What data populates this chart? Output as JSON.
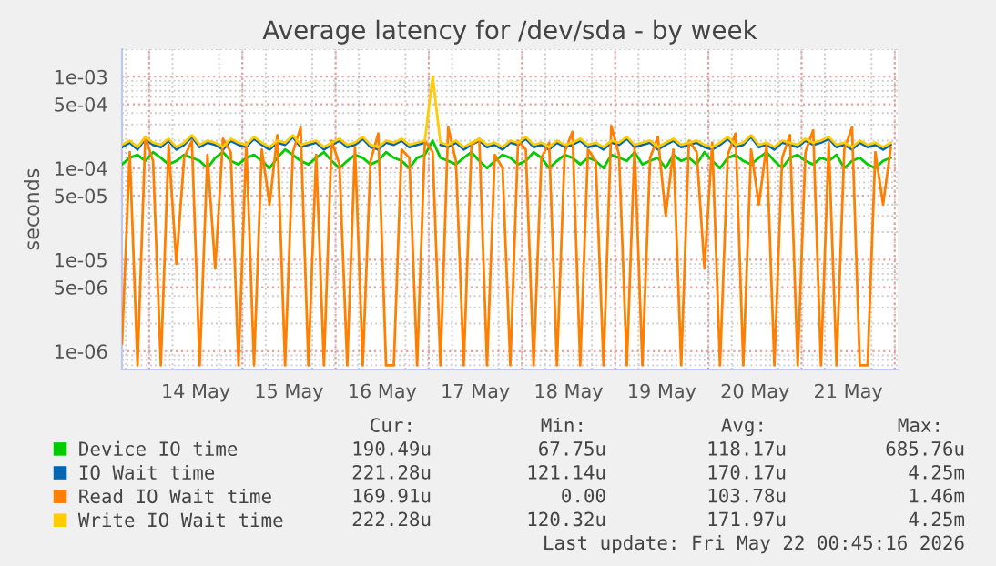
{
  "chart_data": {
    "type": "line",
    "title": "Average latency for /dev/sda - by week",
    "ylabel": "seconds",
    "log": "y",
    "grid": true,
    "legend": "bottom",
    "marker": "none",
    "line_style": "solid",
    "xlim": [
      "2026-05-13T17:00",
      "2026-05-22T00:45"
    ],
    "xticks": [
      {
        "value": "2026-05-14T12:00",
        "label": "14 May"
      },
      {
        "value": "2026-05-15T12:00",
        "label": "15 May"
      },
      {
        "value": "2026-05-16T12:00",
        "label": "16 May"
      },
      {
        "value": "2026-05-17T12:00",
        "label": "17 May"
      },
      {
        "value": "2026-05-18T12:00",
        "label": "18 May"
      },
      {
        "value": "2026-05-19T12:00",
        "label": "19 May"
      },
      {
        "value": "2026-05-20T12:00",
        "label": "20 May"
      },
      {
        "value": "2026-05-21T12:00",
        "label": "21 May"
      }
    ],
    "ylim": [
      6.3e-07,
      0.002
    ],
    "yticks": [
      {
        "value": 0.001,
        "label": "1e-03"
      },
      {
        "value": 0.0005,
        "label": "5e-04"
      },
      {
        "value": 0.0001,
        "label": "1e-04"
      },
      {
        "value": 5e-05,
        "label": "5e-05"
      },
      {
        "value": 1e-05,
        "label": "1e-05"
      },
      {
        "value": 5e-06,
        "label": "5e-06"
      },
      {
        "value": 1e-06,
        "label": "1e-06"
      }
    ],
    "x": [
      "2026-05-13T17:00",
      "2026-05-13T19:00",
      "2026-05-13T21:00",
      "2026-05-13T23:00",
      "2026-05-14T01:00",
      "2026-05-14T03:00",
      "2026-05-14T05:00",
      "2026-05-14T07:00",
      "2026-05-14T09:00",
      "2026-05-14T11:00",
      "2026-05-14T13:00",
      "2026-05-14T15:00",
      "2026-05-14T17:00",
      "2026-05-14T19:00",
      "2026-05-14T21:00",
      "2026-05-14T23:00",
      "2026-05-15T01:00",
      "2026-05-15T03:00",
      "2026-05-15T05:00",
      "2026-05-15T07:00",
      "2026-05-15T09:00",
      "2026-05-15T11:00",
      "2026-05-15T13:00",
      "2026-05-15T15:00",
      "2026-05-15T17:00",
      "2026-05-15T19:00",
      "2026-05-15T21:00",
      "2026-05-15T23:00",
      "2026-05-16T01:00",
      "2026-05-16T03:00",
      "2026-05-16T05:00",
      "2026-05-16T07:00",
      "2026-05-16T09:00",
      "2026-05-16T11:00",
      "2026-05-16T13:00",
      "2026-05-16T15:00",
      "2026-05-16T17:00",
      "2026-05-16T19:00",
      "2026-05-16T21:00",
      "2026-05-16T23:00",
      "2026-05-17T01:00",
      "2026-05-17T03:00",
      "2026-05-17T05:00",
      "2026-05-17T07:00",
      "2026-05-17T09:00",
      "2026-05-17T11:00",
      "2026-05-17T13:00",
      "2026-05-17T15:00",
      "2026-05-17T17:00",
      "2026-05-17T19:00",
      "2026-05-17T21:00",
      "2026-05-17T23:00",
      "2026-05-18T01:00",
      "2026-05-18T03:00",
      "2026-05-18T05:00",
      "2026-05-18T07:00",
      "2026-05-18T09:00",
      "2026-05-18T11:00",
      "2026-05-18T13:00",
      "2026-05-18T15:00",
      "2026-05-18T17:00",
      "2026-05-18T19:00",
      "2026-05-18T21:00",
      "2026-05-18T23:00",
      "2026-05-19T01:00",
      "2026-05-19T03:00",
      "2026-05-19T05:00",
      "2026-05-19T07:00",
      "2026-05-19T09:00",
      "2026-05-19T11:00",
      "2026-05-19T13:00",
      "2026-05-19T15:00",
      "2026-05-19T17:00",
      "2026-05-19T19:00",
      "2026-05-19T21:00",
      "2026-05-19T23:00",
      "2026-05-20T01:00",
      "2026-05-20T03:00",
      "2026-05-20T05:00",
      "2026-05-20T07:00",
      "2026-05-20T09:00",
      "2026-05-20T11:00",
      "2026-05-20T13:00",
      "2026-05-20T15:00",
      "2026-05-20T17:00",
      "2026-05-20T19:00",
      "2026-05-20T21:00",
      "2026-05-20T23:00",
      "2026-05-21T01:00",
      "2026-05-21T03:00",
      "2026-05-21T05:00",
      "2026-05-21T07:00",
      "2026-05-21T09:00",
      "2026-05-21T11:00",
      "2026-05-21T13:00",
      "2026-05-21T15:00",
      "2026-05-21T17:00",
      "2026-05-21T19:00",
      "2026-05-21T21:00",
      "2026-05-21T23:00"
    ],
    "series": [
      {
        "name": "Device IO time",
        "color": "#00cc00",
        "values": [
          0.00011,
          0.00013,
          0.00014,
          0.00012,
          0.00015,
          0.00013,
          0.00011,
          0.00012,
          0.00014,
          0.00013,
          0.00012,
          0.0001,
          0.00013,
          0.00015,
          0.00012,
          0.00011,
          0.00013,
          0.00014,
          0.00012,
          0.0001,
          0.00013,
          0.00016,
          0.00014,
          0.00012,
          0.00011,
          0.00013,
          0.00015,
          0.00012,
          0.0001,
          0.00012,
          0.00014,
          0.00013,
          0.00011,
          0.00012,
          0.00015,
          0.00013,
          0.00012,
          0.0001,
          0.00013,
          0.00014,
          0.0002,
          0.00013,
          0.00012,
          0.00011,
          0.00013,
          0.00015,
          0.00012,
          0.0001,
          0.00012,
          0.00014,
          0.00013,
          0.00011,
          0.00012,
          0.00015,
          0.00013,
          0.0001,
          0.00012,
          0.00014,
          0.00013,
          0.00011,
          0.00013,
          0.00012,
          0.0001,
          0.00014,
          0.00013,
          0.00012,
          0.00015,
          0.00011,
          0.00012,
          0.00013,
          0.0001,
          0.00014,
          0.00012,
          0.00013,
          0.00011,
          0.00015,
          0.00012,
          0.0001,
          0.00013,
          0.00014,
          0.00012,
          0.00011,
          0.00013,
          0.00015,
          0.00012,
          0.0001,
          0.00013,
          0.00014,
          0.00012,
          0.00011,
          0.00013,
          0.00012,
          0.00014,
          0.0001,
          0.00012,
          0.00013,
          0.00011,
          0.0001,
          0.00012,
          0.00013
        ]
      },
      {
        "name": "IO Wait time",
        "color": "#0066b3",
        "values": [
          0.00017,
          0.00019,
          0.00016,
          0.00021,
          0.00018,
          0.00017,
          0.0002,
          0.00016,
          0.00018,
          0.00022,
          0.00017,
          0.00019,
          0.00018,
          0.00016,
          0.0002,
          0.00018,
          0.00017,
          0.00021,
          0.00018,
          0.00016,
          0.00019,
          0.00018,
          0.00022,
          0.00017,
          0.00018,
          0.00019,
          0.00016,
          0.00018,
          0.0002,
          0.00017,
          0.00018,
          0.00021,
          0.00017,
          0.00016,
          0.00019,
          0.00018,
          0.0002,
          0.00017,
          0.00018,
          0.00019,
          null,
          0.00018,
          0.00017,
          0.00019,
          0.00016,
          0.00018,
          0.0002,
          0.00017,
          0.00018,
          0.00016,
          0.00019,
          0.00018,
          0.00021,
          0.00017,
          0.00018,
          0.00016,
          0.00019,
          0.00017,
          0.00018,
          0.0002,
          0.00017,
          0.00018,
          0.00016,
          0.00019,
          0.00018,
          0.00021,
          0.00017,
          0.00018,
          0.00019,
          0.00016,
          0.00018,
          0.0002,
          0.00017,
          0.00018,
          0.00019,
          0.00017,
          0.00016,
          0.00018,
          0.00021,
          0.00017,
          0.00018,
          0.00022,
          0.00017,
          0.00018,
          0.00016,
          0.00019,
          0.00018,
          0.00017,
          0.0002,
          0.00018,
          0.00019,
          0.00021,
          0.00017,
          0.00018,
          0.00016,
          0.00019,
          0.00017,
          0.00018,
          0.00016,
          0.00018
        ]
      },
      {
        "name": "Read IO Wait time",
        "color": "#ff8000",
        "values": [
          1.2e-06,
          0.00015,
          7e-07,
          0.00022,
          0.00012,
          7e-07,
          0.00018,
          9e-06,
          0.00013,
          0.0002,
          7e-07,
          0.00014,
          8e-06,
          0.00021,
          0.00015,
          7e-07,
          0.00019,
          7e-07,
          0.00016,
          4e-05,
          0.00023,
          7e-07,
          0.00015,
          0.00028,
          7e-07,
          0.00014,
          7e-07,
          0.0002,
          0.00011,
          7e-07,
          0.00017,
          7e-07,
          0.00012,
          0.00024,
          7e-07,
          7e-07,
          0.00016,
          0.00013,
          7e-07,
          0.0002,
          0.00015,
          7e-07,
          0.00028,
          0.00012,
          7e-07,
          0.00018,
          0.00021,
          7e-07,
          0.00014,
          0.0001,
          7e-07,
          0.0002,
          0.00016,
          7e-07,
          0.00013,
          0.00019,
          7e-07,
          0.00015,
          0.00025,
          7e-07,
          0.00016,
          0.00012,
          7e-07,
          0.00029,
          0.00014,
          7e-07,
          0.00017,
          7e-07,
          0.00013,
          0.00022,
          3e-05,
          0.00016,
          7e-07,
          0.0002,
          0.00015,
          8e-06,
          0.00019,
          7e-07,
          0.00014,
          0.00024,
          7e-07,
          0.00016,
          4e-05,
          0.00018,
          7e-07,
          0.00013,
          0.00023,
          7e-07,
          0.00015,
          0.00026,
          7e-07,
          0.00019,
          7e-07,
          0.00016,
          0.00028,
          7e-07,
          7e-07,
          0.00015,
          4e-05,
          0.00017
        ]
      },
      {
        "name": "Write IO Wait time",
        "color": "#ffcc00",
        "values": [
          0.00018,
          0.0002,
          0.00017,
          0.00022,
          0.00019,
          0.00018,
          0.00021,
          0.00017,
          0.00019,
          0.00023,
          0.00018,
          0.0002,
          0.00019,
          0.00017,
          0.00021,
          0.00019,
          0.00018,
          0.00022,
          0.00019,
          0.00017,
          0.0002,
          0.00019,
          0.00023,
          0.00018,
          0.00019,
          0.0002,
          0.00017,
          0.00019,
          0.00021,
          0.00018,
          0.00019,
          0.00022,
          0.00018,
          0.00017,
          0.0002,
          0.00019,
          0.00021,
          0.00018,
          0.00019,
          0.0002,
          0.001,
          0.00019,
          0.00018,
          0.0002,
          0.00017,
          0.00019,
          0.00021,
          0.00018,
          0.00019,
          0.00017,
          0.0002,
          0.00019,
          0.00022,
          0.00018,
          0.00019,
          0.00017,
          0.0002,
          0.00018,
          0.00019,
          0.00021,
          0.00018,
          0.00019,
          0.00017,
          0.0002,
          0.00019,
          0.00022,
          0.00018,
          0.00019,
          0.0002,
          0.00017,
          0.00019,
          0.00021,
          0.00018,
          0.00019,
          0.0002,
          0.00018,
          0.00017,
          0.00019,
          0.00022,
          0.00018,
          0.00019,
          0.00023,
          0.00018,
          0.00019,
          0.00017,
          0.0002,
          0.00019,
          0.00018,
          0.00021,
          0.00019,
          0.0002,
          0.00022,
          0.00018,
          0.00019,
          0.00017,
          0.0002,
          0.00018,
          0.00019,
          0.00017,
          0.00019
        ]
      }
    ],
    "annotations": [
      "Cur:",
      "Min:",
      "Avg:",
      "Max:",
      "190.49u",
      "67.75u",
      "118.17u",
      "685.76u",
      "221.28u",
      "121.14u",
      "170.17u",
      "4.25m",
      "169.91u",
      "0.00",
      "103.78u",
      "1.46m",
      "222.28u",
      "120.32u",
      "171.97u",
      "4.25m",
      "Last update: Fri May 22 00:45:16 2026"
    ]
  }
}
